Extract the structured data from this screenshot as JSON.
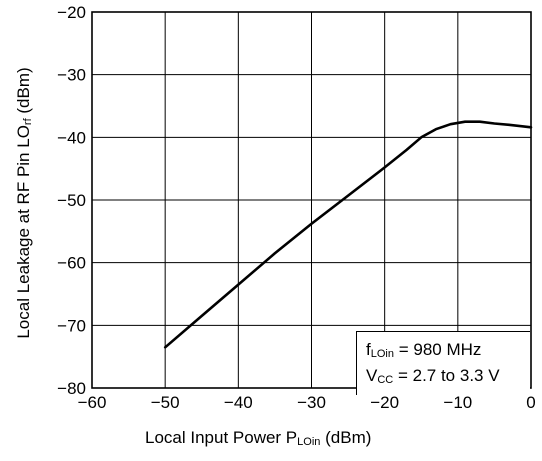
{
  "chart_data": {
    "type": "line",
    "title": "",
    "ylabel": {
      "main": "Local Leakage at RF Pin  LO",
      "sub": "rf",
      "unit": " (dBm)"
    },
    "xlabel": {
      "main": "Local Input Power  P",
      "sub": "LOin",
      "unit": " (dBm)"
    },
    "xlim": [
      -60,
      0
    ],
    "ylim": [
      -80,
      -20
    ],
    "xticks": [
      -60,
      -50,
      -40,
      -30,
      -20,
      -10,
      0
    ],
    "yticks": [
      -80,
      -70,
      -60,
      -50,
      -40,
      -30,
      -20
    ],
    "xtick_labels": [
      "−60",
      "−50",
      "−40",
      "−30",
      "−20",
      "−10",
      "0"
    ],
    "ytick_labels": [
      "−80",
      "−70",
      "−60",
      "−50",
      "−40",
      "−30",
      "−20"
    ],
    "grid": true,
    "series": [
      {
        "x": [
          -50,
          -45,
          -40,
          -35,
          -30,
          -25,
          -20,
          -17,
          -15,
          -13,
          -11,
          -9,
          -7,
          -5,
          -3,
          0
        ],
        "y": [
          -73.5,
          -68.5,
          -63.5,
          -58.5,
          -53.8,
          -49.3,
          -44.8,
          -42.0,
          -40.0,
          -38.7,
          -37.9,
          -37.5,
          -37.5,
          -37.8,
          -38.0,
          -38.4
        ]
      }
    ],
    "annotation": {
      "line1_prefix": "f",
      "line1_sub": "LOin",
      "line1_rest": " = 980 MHz",
      "line2_prefix": "V",
      "line2_sub": "CC",
      "line2_rest": " = 2.7 to 3.3 V"
    }
  }
}
